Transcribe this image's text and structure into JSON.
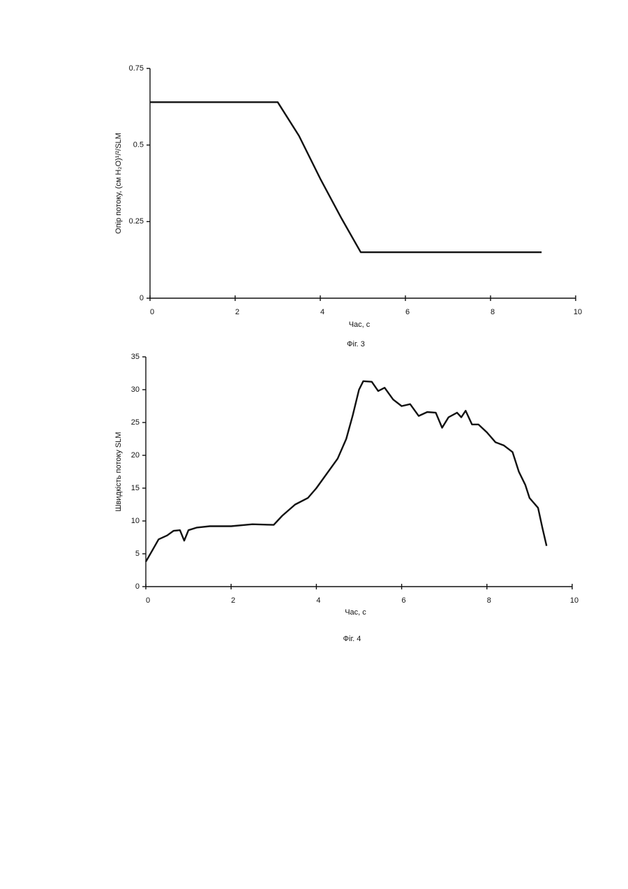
{
  "chart_data": [
    {
      "type": "line",
      "ylabel": "Опір потоку, (см H₂O)¹/²/SLM",
      "xlabel": "Час, с",
      "caption": "Фіг. 3",
      "xlim": [
        0,
        10
      ],
      "ylim": [
        0,
        0.75
      ],
      "xticks": [
        0,
        2,
        4,
        6,
        8,
        10
      ],
      "yticks": [
        0,
        0.25,
        0.5,
        0.75
      ],
      "color": "#111111",
      "x": [
        0,
        1,
        2,
        3,
        3.5,
        4,
        4.5,
        4.95,
        6,
        7,
        8,
        9.2
      ],
      "values": [
        0.64,
        0.64,
        0.64,
        0.64,
        0.53,
        0.39,
        0.26,
        0.15,
        0.15,
        0.15,
        0.15,
        0.15
      ]
    },
    {
      "type": "line",
      "ylabel": "Швидкість потоку SLM",
      "xlabel": "Час, с",
      "caption": "Фіг. 4",
      "xlim": [
        0,
        10
      ],
      "ylim": [
        0,
        35
      ],
      "xticks": [
        0,
        2,
        4,
        6,
        8,
        10
      ],
      "yticks": [
        0,
        5,
        10,
        15,
        20,
        25,
        30,
        35
      ],
      "color": "#111111",
      "x": [
        0,
        0.15,
        0.3,
        0.5,
        0.65,
        0.8,
        0.9,
        1.0,
        1.2,
        1.5,
        2,
        2.5,
        3,
        3.2,
        3.5,
        3.8,
        4.0,
        4.5,
        4.7,
        4.85,
        5.0,
        5.1,
        5.3,
        5.45,
        5.6,
        5.8,
        6.0,
        6.2,
        6.4,
        6.6,
        6.8,
        6.95,
        7.1,
        7.3,
        7.4,
        7.5,
        7.65,
        7.8,
        8.0,
        8.2,
        8.4,
        8.6,
        8.75,
        8.9,
        9.0,
        9.2,
        9.3,
        9.4
      ],
      "values": [
        3.8,
        5.5,
        7.2,
        7.8,
        8.5,
        8.6,
        7,
        8.6,
        9,
        9.2,
        9.2,
        9.5,
        9.4,
        10.8,
        12.5,
        13.5,
        15,
        19.5,
        22.5,
        26,
        30,
        31.3,
        31.2,
        29.8,
        30.3,
        28.5,
        27.5,
        27.8,
        26,
        26.6,
        26.5,
        24.2,
        25.8,
        26.5,
        25.8,
        26.8,
        24.7,
        24.7,
        23.5,
        22,
        21.5,
        20.5,
        17.5,
        15.5,
        13.5,
        12,
        9,
        6.2
      ]
    }
  ]
}
